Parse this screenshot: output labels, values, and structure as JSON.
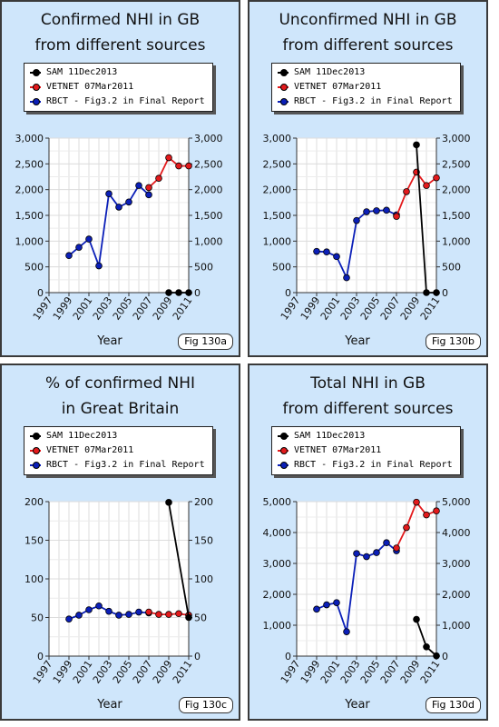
{
  "colors": {
    "sam": "#000000",
    "vetnet": "#e31a1c",
    "rbct": "#0b1fb8",
    "panel_bg": "#cfe6fb"
  },
  "chart_data": [
    {
      "type": "line",
      "title_line1": "Confirmed NHI in GB",
      "title_line2": "from different sources",
      "xlabel": "Year",
      "ylabel": "",
      "fig_label": "Fig 130a",
      "ylim": [
        0,
        3000
      ],
      "xlim": [
        1997,
        2011
      ],
      "yticks": [
        0,
        500,
        1000,
        1500,
        2000,
        2500,
        3000
      ],
      "ytick_labels": [
        "0",
        "500",
        "1,000",
        "1,500",
        "2,000",
        "2,500",
        "3,000"
      ],
      "xticks": [
        1997,
        1999,
        2001,
        2003,
        2005,
        2007,
        2009,
        2011
      ],
      "xtick_labels": [
        "1997",
        "1999",
        "2001",
        "2003",
        "2005",
        "2007",
        "2009",
        "2011"
      ],
      "grid": true,
      "legend": "top",
      "series": [
        {
          "name": "SAM 11Dec2013",
          "key": "sam",
          "x": [
            2009,
            2010,
            2011
          ],
          "y": [
            0,
            0,
            0
          ]
        },
        {
          "name": "VETNET 07Mar2011",
          "key": "vetnet",
          "x": [
            2007,
            2008,
            2009,
            2010,
            2011
          ],
          "y": [
            2040,
            2220,
            2620,
            2460,
            2460
          ]
        },
        {
          "name": "RBCT - Fig3.2 in Final Report",
          "key": "rbct",
          "x": [
            1999,
            2000,
            2001,
            2002,
            2003,
            2004,
            2005,
            2006,
            2007
          ],
          "y": [
            720,
            880,
            1040,
            520,
            1920,
            1660,
            1760,
            2080,
            1900
          ]
        }
      ]
    },
    {
      "type": "line",
      "title_line1": "Unconfirmed NHI in GB",
      "title_line2": "from different sources",
      "xlabel": "Year",
      "ylabel": "",
      "fig_label": "Fig 130b",
      "ylim": [
        0,
        3000
      ],
      "xlim": [
        1997,
        2011
      ],
      "yticks": [
        0,
        500,
        1000,
        1500,
        2000,
        2500,
        3000
      ],
      "ytick_labels": [
        "0",
        "500",
        "1,000",
        "1,500",
        "2,000",
        "2,500",
        "3,000"
      ],
      "xticks": [
        1997,
        1999,
        2001,
        2003,
        2005,
        2007,
        2009,
        2011
      ],
      "xtick_labels": [
        "1997",
        "1999",
        "2001",
        "2003",
        "2005",
        "2007",
        "2009",
        "2011"
      ],
      "grid": true,
      "legend": "top",
      "series": [
        {
          "name": "SAM 11Dec2013",
          "key": "sam",
          "x": [
            2009,
            2010,
            2011
          ],
          "y": [
            2870,
            0,
            0
          ]
        },
        {
          "name": "VETNET 07Mar2011",
          "key": "vetnet",
          "x": [
            2007,
            2008,
            2009,
            2010,
            2011
          ],
          "y": [
            1480,
            1960,
            2340,
            2080,
            2230
          ]
        },
        {
          "name": "RBCT - Fig3.2 in Final Report",
          "key": "rbct",
          "x": [
            1999,
            2000,
            2001,
            2002,
            2003,
            2004,
            2005,
            2006,
            2007
          ],
          "y": [
            800,
            790,
            700,
            290,
            1400,
            1570,
            1590,
            1600,
            1510
          ]
        }
      ]
    },
    {
      "type": "line",
      "title_line1": "% of confirmed NHI",
      "title_line2": "in Great Britain",
      "xlabel": "Year",
      "ylabel": "",
      "fig_label": "Fig 130c",
      "ylim": [
        0,
        200
      ],
      "xlim": [
        1997,
        2011
      ],
      "yticks": [
        0,
        50,
        100,
        150,
        200
      ],
      "ytick_labels": [
        "0",
        "50",
        "100",
        "150",
        "200"
      ],
      "xticks": [
        1997,
        1999,
        2001,
        2003,
        2005,
        2007,
        2009,
        2011
      ],
      "xtick_labels": [
        "1997",
        "1999",
        "2001",
        "2003",
        "2005",
        "2007",
        "2009",
        "2011"
      ],
      "grid": true,
      "legend": "top",
      "series": [
        {
          "name": "SAM 11Dec2013",
          "key": "sam",
          "x": [
            2009,
            2011
          ],
          "y": [
            199,
            50
          ]
        },
        {
          "name": "VETNET 07Mar2011",
          "key": "vetnet",
          "x": [
            2007,
            2008,
            2009,
            2010,
            2011
          ],
          "y": [
            57,
            54,
            54,
            55,
            53
          ]
        },
        {
          "name": "RBCT - Fig3.2 in Final Report",
          "key": "rbct",
          "x": [
            1999,
            2000,
            2001,
            2002,
            2003,
            2004,
            2005,
            2006,
            2007
          ],
          "y": [
            48,
            53,
            60,
            65,
            58,
            53,
            54,
            57,
            56
          ]
        }
      ]
    },
    {
      "type": "line",
      "title_line1": "Total NHI in GB",
      "title_line2": "from different sources",
      "xlabel": "Year",
      "ylabel": "",
      "fig_label": "Fig 130d",
      "ylim": [
        0,
        5000
      ],
      "xlim": [
        1997,
        2011
      ],
      "yticks": [
        0,
        1000,
        2000,
        3000,
        4000,
        5000
      ],
      "ytick_labels": [
        "0",
        "1,000",
        "2,000",
        "3,000",
        "4,000",
        "5,000"
      ],
      "xticks": [
        1997,
        1999,
        2001,
        2003,
        2005,
        2007,
        2009,
        2011
      ],
      "xtick_labels": [
        "1997",
        "1999",
        "2001",
        "2003",
        "2005",
        "2007",
        "2009",
        "2011"
      ],
      "grid": true,
      "legend": "top",
      "series": [
        {
          "name": "SAM 11Dec2013",
          "key": "sam",
          "x": [
            2009,
            2010,
            2011
          ],
          "y": [
            1190,
            300,
            10
          ]
        },
        {
          "name": "VETNET 07Mar2011",
          "key": "vetnet",
          "x": [
            2007,
            2008,
            2009,
            2010,
            2011
          ],
          "y": [
            3500,
            4160,
            4980,
            4570,
            4700
          ]
        },
        {
          "name": "RBCT - Fig3.2 in Final Report",
          "key": "rbct",
          "x": [
            1999,
            2000,
            2001,
            2002,
            2003,
            2004,
            2005,
            2006,
            2007
          ],
          "y": [
            1520,
            1660,
            1730,
            790,
            3320,
            3220,
            3350,
            3670,
            3410
          ]
        }
      ]
    }
  ]
}
